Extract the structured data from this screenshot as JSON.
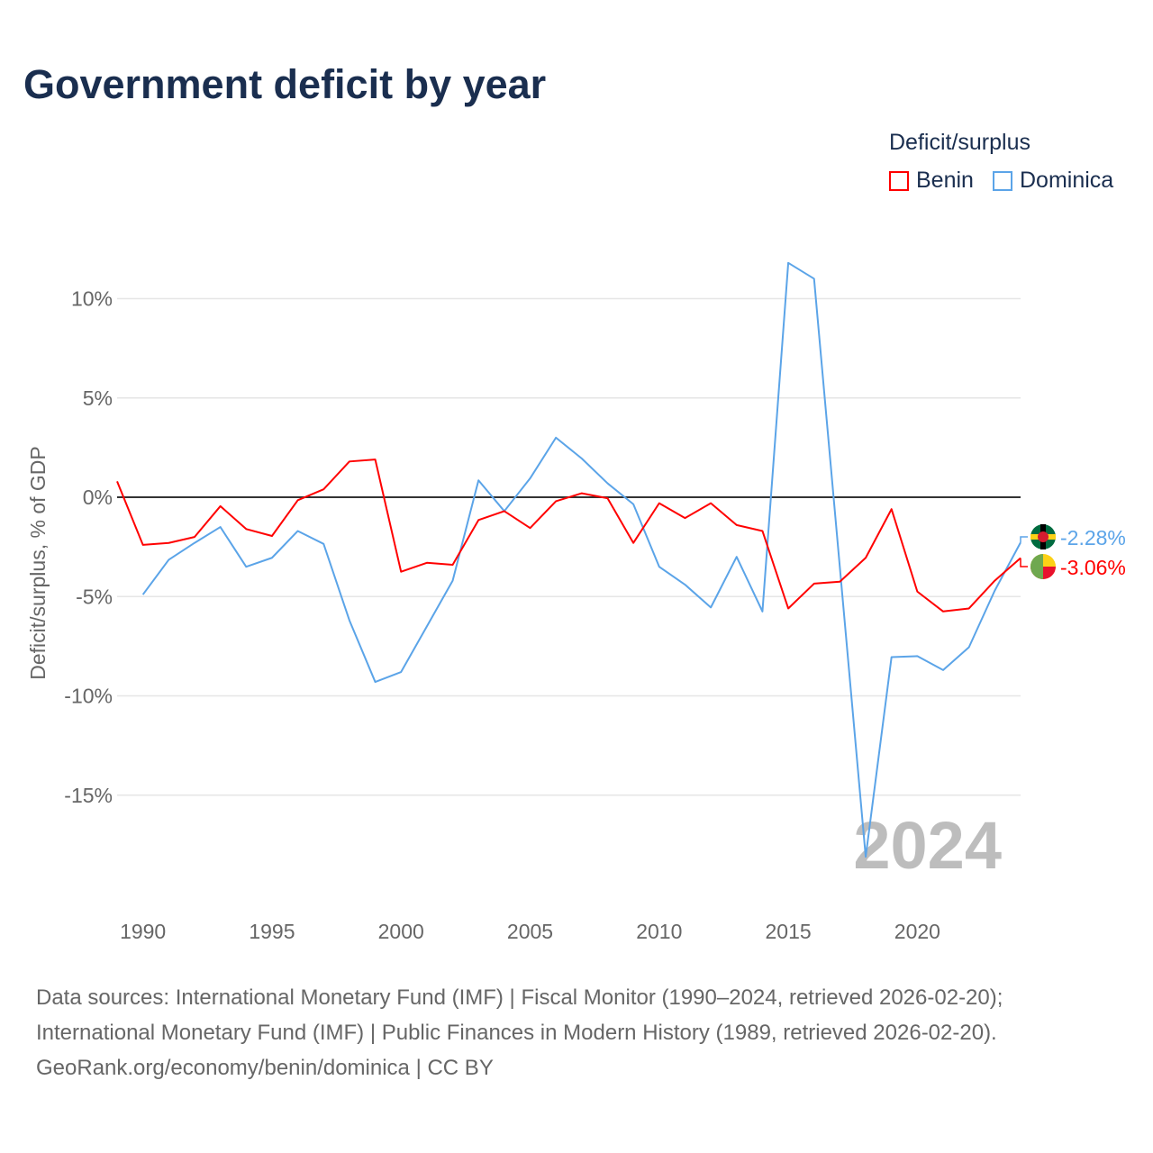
{
  "title": "Government deficit by year",
  "legend": {
    "title": "Deficit/surplus",
    "items": [
      {
        "name": "Benin",
        "color": "#ff0000"
      },
      {
        "name": "Dominica",
        "color": "#5ba4e8"
      }
    ]
  },
  "year_label": "2024",
  "end_labels": {
    "benin": "-3.06%",
    "dominica": "-2.28%"
  },
  "sources": [
    "Data sources: International Monetary Fund (IMF) | Fiscal Monitor (1990–2024, retrieved 2026-02-20);",
    "International Monetary Fund (IMF) | Public Finances in Modern History (1989, retrieved 2026-02-20).",
    "GeoRank.org/economy/benin/dominica | CC BY"
  ],
  "chart_data": {
    "type": "line",
    "title": "Government deficit by year",
    "ylabel": "Deficit/surplus, % of GDP",
    "xlabel": "",
    "xlim": [
      1989,
      2024
    ],
    "ylim": [
      -19.5,
      13
    ],
    "xticks": [
      1990,
      1995,
      2000,
      2005,
      2010,
      2015,
      2020
    ],
    "yticks": [
      {
        "v": 10,
        "label": "10%"
      },
      {
        "v": 5,
        "label": "5%"
      },
      {
        "v": 0,
        "label": "0%"
      },
      {
        "v": -5,
        "label": "-5%"
      },
      {
        "v": -10,
        "label": "-10%"
      },
      {
        "v": -15,
        "label": "-15%"
      }
    ],
    "series": [
      {
        "name": "Benin",
        "color": "#ff0000",
        "start": 1989,
        "values": [
          0.8,
          -2.4,
          -2.3,
          -2.0,
          -0.45,
          -1.6,
          -1.95,
          -0.15,
          0.4,
          1.8,
          1.9,
          -3.75,
          -3.3,
          -3.4,
          -1.15,
          -0.7,
          -1.55,
          -0.2,
          0.2,
          -0.05,
          -2.3,
          -0.3,
          -1.05,
          -0.3,
          -1.4,
          -1.7,
          -5.6,
          -4.35,
          -4.25,
          -3.05,
          -0.6,
          -4.75,
          -5.75,
          -5.6,
          -4.2,
          -3.06
        ]
      },
      {
        "name": "Dominica",
        "color": "#5ba4e8",
        "start": 1990,
        "values": [
          -4.9,
          -3.15,
          -2.3,
          -1.5,
          -3.5,
          -3.05,
          -1.7,
          -2.35,
          -6.2,
          -9.3,
          -8.8,
          -6.5,
          -4.2,
          0.85,
          -0.7,
          0.95,
          3.0,
          1.95,
          0.7,
          -0.35,
          -3.5,
          -4.4,
          -5.55,
          -3.0,
          -5.75,
          11.8,
          11.0,
          -3.55,
          -18.1,
          -8.05,
          -8.0,
          -8.7,
          -7.55,
          -4.7,
          -2.28
        ]
      }
    ]
  }
}
